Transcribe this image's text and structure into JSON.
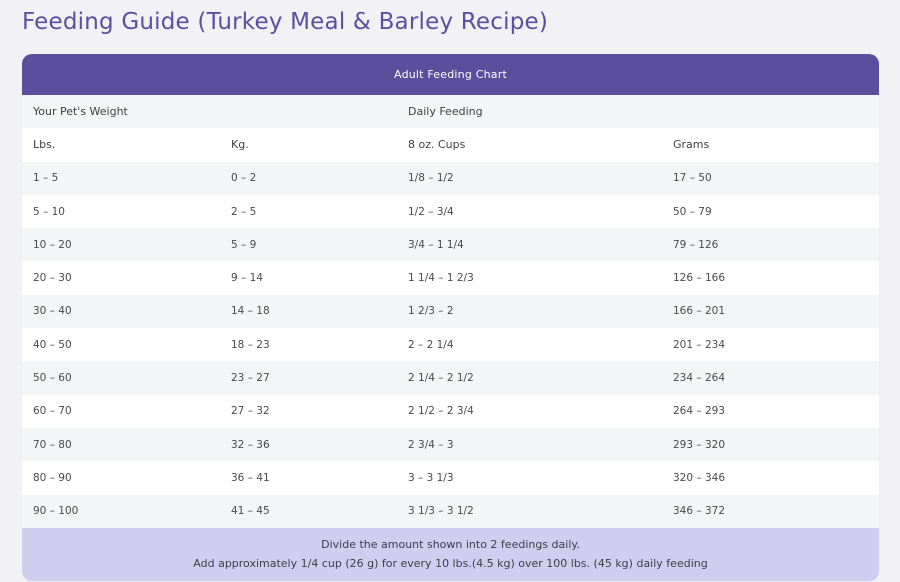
{
  "page": {
    "title": "Feeding Guide (Turkey Meal & Barley Recipe)"
  },
  "colors": {
    "title": "#5c4fa0",
    "header_bg": "#5b4f9d",
    "footer_bg": "#d1cdef",
    "row_alt": "#f4f5f7",
    "page_bg": "#f2f2f6"
  },
  "chart": {
    "title": "Adult Feeding Chart",
    "group_headers": {
      "weight": "Your Pet's Weight",
      "feeding": "Daily Feeding"
    },
    "columns": [
      "Lbs.",
      "Kg.",
      "8 oz. Cups",
      "Grams"
    ],
    "rows": [
      [
        "1 – 5",
        "0 – 2",
        "1/8 – 1/2",
        "17 – 50"
      ],
      [
        "5 – 10",
        "2 – 5",
        "1/2 – 3/4",
        "50 – 79"
      ],
      [
        "10 – 20",
        "5 – 9",
        "3/4 – 1 1/4",
        "79 – 126"
      ],
      [
        "20 – 30",
        "9 – 14",
        "1 1/4 – 1 2/3",
        "126 – 166"
      ],
      [
        "30 – 40",
        "14 – 18",
        "1 2/3 – 2",
        "166 – 201"
      ],
      [
        "40 – 50",
        "18 – 23",
        "2 – 2 1/4",
        "201 – 234"
      ],
      [
        "50 – 60",
        "23 – 27",
        "2 1/4 – 2 1/2",
        "234 – 264"
      ],
      [
        "60 – 70",
        "27 – 32",
        "2 1/2 – 2 3/4",
        "264 – 293"
      ],
      [
        "70 – 80",
        "32 – 36",
        "2 3/4 – 3",
        "293 – 320"
      ],
      [
        "80 – 90",
        "36 – 41",
        "3 – 3 1/3",
        "320 – 346"
      ],
      [
        "90 – 100",
        "41 – 45",
        "3 1/3 – 3 1/2",
        "346 – 372"
      ]
    ],
    "footer": {
      "line1": "Divide the amount shown into 2 feedings daily.",
      "line2": "Add approximately 1/4 cup (26 g) for every 10 lbs.(4.5 kg) over 100 lbs. (45 kg) daily feeding"
    }
  }
}
